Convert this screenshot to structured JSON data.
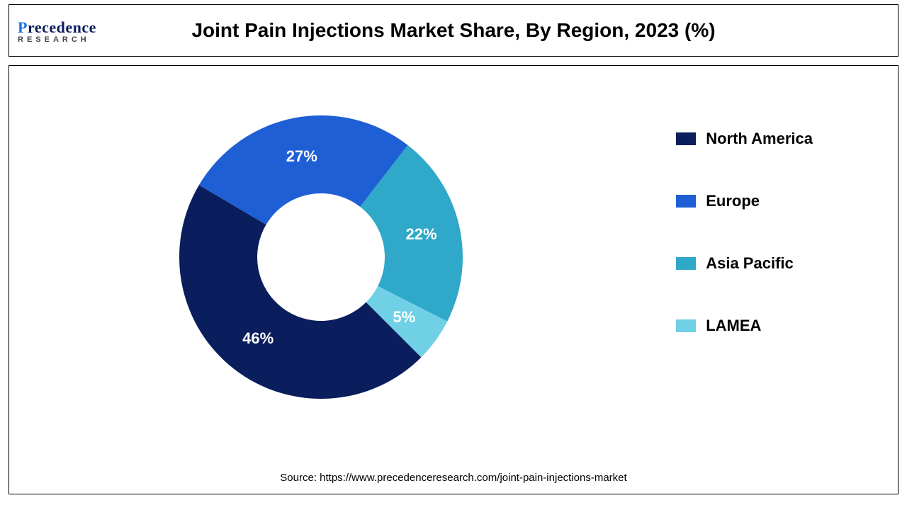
{
  "logo": {
    "brand_top": "recedence",
    "brand_bottom": "RESEARCH"
  },
  "chart": {
    "type": "donut",
    "title": "Joint Pain Injections Market Share, By Region, 2023 (%)",
    "background_color": "#ffffff",
    "border_color": "#000000",
    "inner_radius_ratio": 0.45,
    "start_angle_deg": 45,
    "label_fontsize": 22,
    "label_fontweight": 700,
    "label_color": "#ffffff",
    "title_fontsize": 28,
    "title_fontweight": 700,
    "legend_fontsize": 22,
    "legend_fontweight": 700,
    "series": [
      {
        "name": "North America",
        "value": 46,
        "color": "#0a1d5c",
        "label": "46%"
      },
      {
        "name": "Europe",
        "value": 27,
        "color": "#1f5fd6",
        "label": "27%"
      },
      {
        "name": "Asia Pacific",
        "value": 22,
        "color": "#2fa8c9",
        "label": "22%"
      },
      {
        "name": "LAMEA",
        "value": 5,
        "color": "#6fd0e6",
        "label": "5%"
      }
    ]
  },
  "source": "Source: https://www.precedenceresearch.com/joint-pain-injections-market"
}
